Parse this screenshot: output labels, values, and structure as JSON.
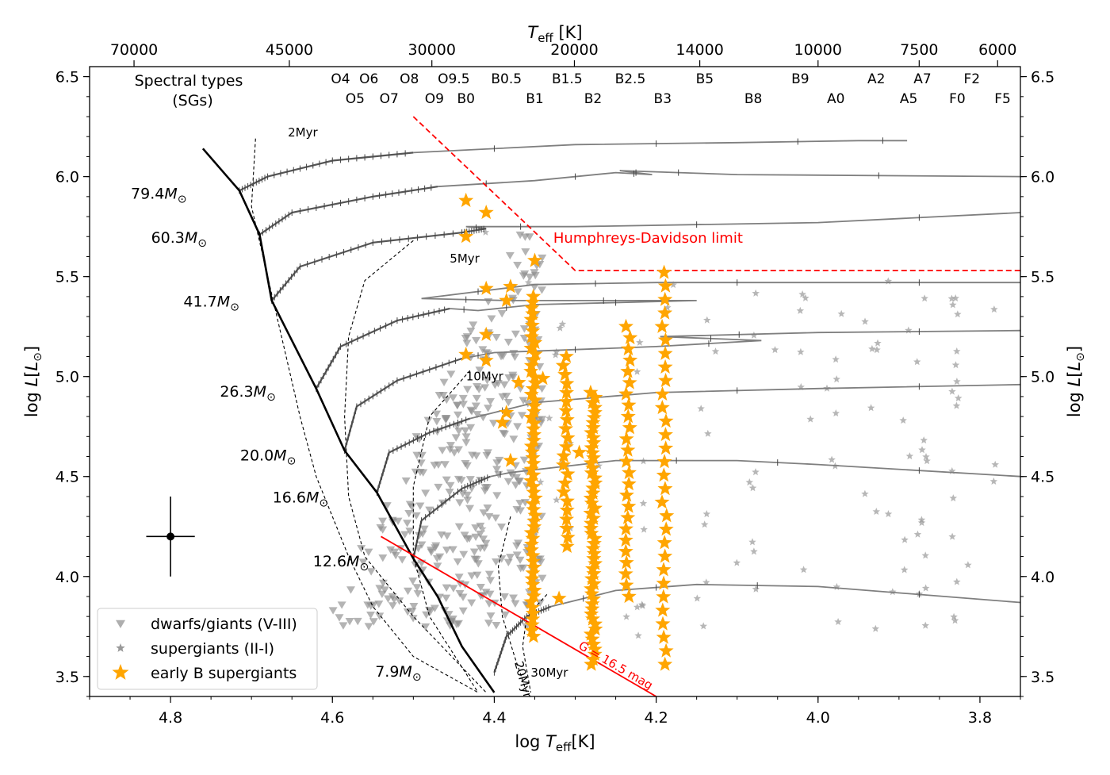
{
  "chart_data": {
    "type": "scatter",
    "xlabel": "log T_eff [K]",
    "ylabel": "log L [L_⊙]",
    "ylabel_right": "log L [L_⊙]",
    "top_axis_label": "T_eff [K]",
    "xlim": [
      4.9,
      3.75
    ],
    "ylim": [
      3.4,
      6.55
    ],
    "x_ticks": [
      4.8,
      4.6,
      4.4,
      4.2,
      4.0,
      3.8
    ],
    "x_tick_labels": [
      "4.8",
      "4.6",
      "4.4",
      "4.2",
      "4.0",
      "3.8"
    ],
    "y_ticks": [
      3.5,
      4.0,
      4.5,
      5.0,
      5.5,
      6.0,
      6.5
    ],
    "y_tick_labels": [
      "3.5",
      "4.0",
      "4.5",
      "5.0",
      "5.5",
      "6.0",
      "6.5"
    ],
    "top_ticks": [
      70000,
      45000,
      30000,
      20000,
      14000,
      10000,
      7500,
      6000
    ],
    "top_tick_labels": [
      "70000",
      "45000",
      "30000",
      "20000",
      "14000",
      "10000",
      "7500",
      "6000"
    ],
    "spectral_title": [
      "Spectral types",
      "(SGs)"
    ],
    "spectral_types_row1": [
      {
        "label": "O4",
        "x": 4.59
      },
      {
        "label": "O6",
        "x": 4.555
      },
      {
        "label": "O8",
        "x": 4.505
      },
      {
        "label": "O9.5",
        "x": 4.45
      },
      {
        "label": "B0.5",
        "x": 4.385
      },
      {
        "label": "B1.5",
        "x": 4.31
      },
      {
        "label": "B2.5",
        "x": 4.232
      },
      {
        "label": "B5",
        "x": 4.14
      },
      {
        "label": "B9",
        "x": 4.022
      },
      {
        "label": "A2",
        "x": 3.928
      },
      {
        "label": "A7",
        "x": 3.871
      },
      {
        "label": "F2",
        "x": 3.81
      }
    ],
    "spectral_types_row2": [
      {
        "label": "O5",
        "x": 4.572
      },
      {
        "label": "O7",
        "x": 4.53
      },
      {
        "label": "O9",
        "x": 4.474
      },
      {
        "label": "B0",
        "x": 4.435
      },
      {
        "label": "B1",
        "x": 4.35
      },
      {
        "label": "B2",
        "x": 4.278
      },
      {
        "label": "B3",
        "x": 4.192
      },
      {
        "label": "B8",
        "x": 4.08
      },
      {
        "label": "A0",
        "x": 3.978
      },
      {
        "label": "A5",
        "x": 3.888
      },
      {
        "label": "F0",
        "x": 3.828
      },
      {
        "label": "F5",
        "x": 3.772
      }
    ],
    "zams": [
      [
        4.76,
        6.14
      ],
      [
        4.715,
        5.93
      ],
      [
        4.69,
        5.71
      ],
      [
        4.675,
        5.38
      ],
      [
        4.62,
        4.94
      ],
      [
        4.585,
        4.63
      ],
      [
        4.545,
        4.42
      ],
      [
        4.5,
        4.09
      ],
      [
        4.47,
        3.9
      ],
      [
        4.44,
        3.65
      ],
      [
        4.4,
        3.42
      ]
    ],
    "tracks": [
      {
        "mass_label": "79.4",
        "label_x": 4.78,
        "label_y": 5.89,
        "ms": [
          [
            4.715,
            5.93
          ],
          [
            4.68,
            6.0
          ],
          [
            4.6,
            6.08
          ],
          [
            4.5,
            6.12
          ]
        ],
        "post": [
          [
            4.5,
            6.12
          ],
          [
            4.3,
            6.16
          ],
          [
            4.1,
            6.17
          ],
          [
            3.95,
            6.18
          ],
          [
            3.89,
            6.18
          ]
        ]
      },
      {
        "mass_label": "60.3",
        "label_x": 4.755,
        "label_y": 5.67,
        "ms": [
          [
            4.69,
            5.71
          ],
          [
            4.65,
            5.82
          ],
          [
            4.55,
            5.9
          ],
          [
            4.47,
            5.95
          ]
        ],
        "post": [
          [
            4.47,
            5.95
          ],
          [
            4.35,
            5.98
          ],
          [
            4.25,
            6.02
          ],
          [
            4.205,
            6.01
          ],
          [
            4.245,
            6.03
          ],
          [
            4.1,
            6.01
          ],
          [
            3.75,
            6.0
          ]
        ]
      },
      {
        "mass_label": "41.7",
        "label_x": 4.715,
        "label_y": 5.35,
        "ms": [
          [
            4.675,
            5.38
          ],
          [
            4.64,
            5.55
          ],
          [
            4.55,
            5.67
          ],
          [
            4.44,
            5.72
          ],
          [
            4.41,
            5.74
          ]
        ],
        "post": [
          [
            4.41,
            5.74
          ],
          [
            4.435,
            5.75
          ],
          [
            4.3,
            5.75
          ],
          [
            4.0,
            5.77
          ],
          [
            3.75,
            5.82
          ]
        ]
      },
      {
        "mass_label": "26.3",
        "label_x": 4.67,
        "label_y": 4.9,
        "ms": [
          [
            4.62,
            4.94
          ],
          [
            4.59,
            5.15
          ],
          [
            4.52,
            5.28
          ],
          [
            4.455,
            5.34
          ]
        ],
        "post": [
          [
            4.455,
            5.34
          ],
          [
            4.42,
            5.33
          ],
          [
            4.35,
            5.36
          ],
          [
            4.15,
            5.38
          ],
          [
            4.38,
            5.38
          ],
          [
            4.49,
            5.39
          ],
          [
            4.35,
            5.46
          ],
          [
            4.2,
            5.47
          ],
          [
            4.0,
            5.47
          ],
          [
            3.75,
            5.47
          ]
        ]
      },
      {
        "mass_label": "20.0",
        "label_x": 4.645,
        "label_y": 4.58,
        "ms": [
          [
            4.585,
            4.63
          ],
          [
            4.57,
            4.85
          ],
          [
            4.52,
            4.98
          ],
          [
            4.44,
            5.09
          ]
        ],
        "post": [
          [
            4.44,
            5.09
          ],
          [
            4.4,
            5.12
          ],
          [
            4.2,
            5.15
          ],
          [
            4.07,
            5.18
          ],
          [
            4.195,
            5.2
          ],
          [
            4.0,
            5.22
          ],
          [
            3.75,
            5.23
          ]
        ]
      },
      {
        "mass_label": "16.6",
        "label_x": 4.605,
        "label_y": 4.37,
        "ms": [
          [
            4.545,
            4.42
          ],
          [
            4.53,
            4.62
          ],
          [
            4.48,
            4.72
          ],
          [
            4.43,
            4.79
          ]
        ],
        "post": [
          [
            4.43,
            4.79
          ],
          [
            4.35,
            4.87
          ],
          [
            4.2,
            4.92
          ],
          [
            4.0,
            4.94
          ],
          [
            3.75,
            4.96
          ]
        ]
      },
      {
        "mass_label": "12.6",
        "label_x": 4.555,
        "label_y": 4.05,
        "ms": [
          [
            4.5,
            4.09
          ],
          [
            4.49,
            4.28
          ],
          [
            4.44,
            4.44
          ],
          [
            4.405,
            4.5
          ]
        ],
        "post": [
          [
            4.405,
            4.5
          ],
          [
            4.38,
            4.52
          ],
          [
            4.25,
            4.58
          ],
          [
            4.1,
            4.58
          ],
          [
            4.0,
            4.56
          ],
          [
            3.75,
            4.5
          ]
        ]
      },
      {
        "mass_label": "7.9",
        "label_x": 4.49,
        "label_y": 3.5,
        "ms": [
          [
            4.4,
            3.52
          ],
          [
            4.385,
            3.7
          ],
          [
            4.36,
            3.8
          ],
          [
            4.33,
            3.85
          ]
        ],
        "post": [
          [
            4.33,
            3.85
          ],
          [
            4.25,
            3.93
          ],
          [
            4.15,
            3.96
          ],
          [
            4.0,
            3.95
          ],
          [
            3.75,
            3.87
          ]
        ]
      }
    ],
    "isochrones": [
      {
        "label": "2Myr",
        "label_x": 4.655,
        "label_y": 6.2,
        "points": [
          [
            4.695,
            6.19
          ],
          [
            4.7,
            5.85
          ],
          [
            4.68,
            5.5
          ],
          [
            4.66,
            5.15
          ],
          [
            4.64,
            4.8
          ],
          [
            4.62,
            4.5
          ],
          [
            4.58,
            4.1
          ],
          [
            4.55,
            3.85
          ],
          [
            4.5,
            3.6
          ],
          [
            4.42,
            3.42
          ]
        ]
      },
      {
        "label": "5Myr",
        "label_x": 4.455,
        "label_y": 5.57,
        "points": [
          [
            4.5,
            5.68
          ],
          [
            4.56,
            5.48
          ],
          [
            4.58,
            5.2
          ],
          [
            4.585,
            4.8
          ],
          [
            4.58,
            4.4
          ],
          [
            4.56,
            4.1
          ],
          [
            4.5,
            3.8
          ],
          [
            4.41,
            3.42
          ]
        ]
      },
      {
        "label": "10Myr",
        "label_x": 4.435,
        "label_y": 4.98,
        "points": [
          [
            4.43,
            5.03
          ],
          [
            4.48,
            4.8
          ],
          [
            4.5,
            4.45
          ],
          [
            4.5,
            4.1
          ],
          [
            4.48,
            3.8
          ],
          [
            4.42,
            3.42
          ]
        ]
      },
      {
        "label": "20Myr",
        "label_x": 4.375,
        "label_y": 3.57,
        "points": [
          [
            4.38,
            4.3
          ],
          [
            4.395,
            4.05
          ],
          [
            4.39,
            3.8
          ],
          [
            4.375,
            3.6
          ],
          [
            4.36,
            3.42
          ]
        ]
      },
      {
        "label": "30Myr",
        "label_x": 4.355,
        "label_y": 3.5,
        "points": [
          [
            4.335,
            3.91
          ],
          [
            4.36,
            3.8
          ],
          [
            4.365,
            3.65
          ],
          [
            4.355,
            3.42
          ]
        ]
      }
    ],
    "hd_limit": {
      "label": "Humphreys-Davidson limit",
      "label_x": 4.21,
      "label_y": 5.67,
      "points": [
        [
          4.5,
          6.3
        ],
        [
          4.3,
          5.53
        ],
        [
          3.75,
          5.53
        ]
      ],
      "color": "#ff0000"
    },
    "mag_limit": {
      "label": "G = 16.5 mag",
      "points": [
        [
          4.54,
          4.2
        ],
        [
          4.2,
          3.4
        ]
      ],
      "color": "#ff0000"
    },
    "error_bar": {
      "x": 4.8,
      "y": 4.2,
      "xerr": 0.03,
      "yerr": 0.2
    },
    "series": [
      {
        "name": "dwarfs/giants (V-III)",
        "marker": "triangle-down",
        "color": "#8c8c8c"
      },
      {
        "name": "supergiants (II-I)",
        "marker": "small-star",
        "color": "#999999"
      },
      {
        "name": "early B supergiants",
        "marker": "star",
        "color": "#ffa500"
      }
    ],
    "sg_columns": [
      {
        "x": 4.352,
        "ymin": 3.7,
        "ymax": 5.4,
        "n": 60
      },
      {
        "x": 4.312,
        "ymin": 4.15,
        "ymax": 5.1,
        "n": 22
      },
      {
        "x": 4.278,
        "ymin": 3.56,
        "ymax": 4.92,
        "n": 55
      },
      {
        "x": 4.235,
        "ymin": 3.9,
        "ymax": 5.25,
        "n": 25
      },
      {
        "x": 4.19,
        "ymin": 3.56,
        "ymax": 5.52,
        "n": 30
      }
    ],
    "sg_extra": [
      [
        4.435,
        5.88
      ],
      [
        4.41,
        5.82
      ],
      [
        4.435,
        5.7
      ],
      [
        4.35,
        5.58
      ],
      [
        4.41,
        5.44
      ],
      [
        4.38,
        5.45
      ],
      [
        4.385,
        5.38
      ],
      [
        4.41,
        5.21
      ],
      [
        4.435,
        5.11
      ],
      [
        4.41,
        5.08
      ],
      [
        4.34,
        4.99
      ],
      [
        4.37,
        4.97
      ],
      [
        4.385,
        4.82
      ],
      [
        4.39,
        4.77
      ],
      [
        4.295,
        4.62
      ],
      [
        4.38,
        4.58
      ],
      [
        4.32,
        3.89
      ]
    ],
    "dwarf_region": {
      "xmin": 4.34,
      "xmax": 4.63,
      "ymin": 3.75,
      "ymax": 6.1,
      "n": 360
    },
    "ms_star_region": {
      "xmin": 3.77,
      "xmax": 4.43,
      "ymin": 3.7,
      "ymax": 6.1,
      "n": 150
    },
    "legend_position": "lower-left"
  }
}
